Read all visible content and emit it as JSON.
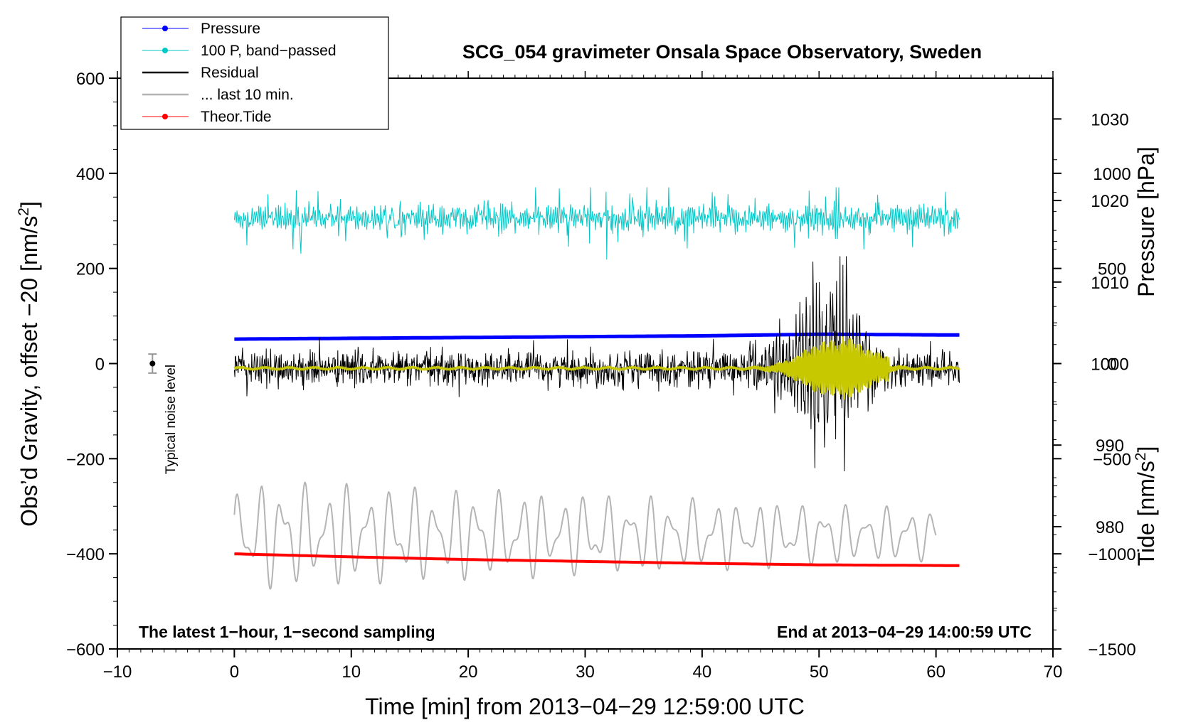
{
  "chart_data": {
    "type": "line",
    "title": "SCG_054 gravimeter Onsala Space Observatory, Sweden",
    "xlabel": "Time [min] from 2013−04−29 12:59:00 UTC",
    "ylabel_left": "Obs’d Gravity, offset −20 [nm/s²]",
    "ylabel_left_base": "Obs’d Gravity, offset −20 [nm/s",
    "ylabel_left_sup": "2",
    "ylabel_left_tail": "]",
    "ylabel_right_pressure": "Pressure [hPa]",
    "ylabel_right_tide_base": "Tide [nm/s",
    "ylabel_right_tide_sup": "2",
    "ylabel_right_tide_tail": "]",
    "xlim": [
      -10,
      70
    ],
    "ylim": [
      -600,
      600
    ],
    "pressure_axis_range": [
      965,
      1035
    ],
    "tide_axis_range": [
      -1500,
      1500
    ],
    "x_ticks": [
      -10,
      0,
      10,
      20,
      30,
      40,
      50,
      60,
      70
    ],
    "x_tick_labels": [
      "−10",
      "0",
      "10",
      "20",
      "30",
      "40",
      "50",
      "60",
      "70"
    ],
    "y_ticks": [
      -600,
      -400,
      -200,
      0,
      200,
      400,
      600
    ],
    "y_tick_labels": [
      "−600",
      "−400",
      "−200",
      "0",
      "200",
      "400",
      "600"
    ],
    "pressure_ticks": [
      980,
      990,
      1000,
      1010,
      1020,
      1030
    ],
    "pressure_tick_labels": [
      "980",
      "990",
      "1000",
      "1010",
      "1020",
      "1030"
    ],
    "tide_ticks": [
      -1500,
      -1000,
      -500,
      0,
      500,
      1000
    ],
    "tide_tick_labels": [
      "−1500",
      "−1000",
      "−500",
      "0",
      "500",
      "1000"
    ],
    "legend_position": "top-left",
    "legend": [
      {
        "label": "Pressure",
        "color": "#0000ff",
        "marker": true
      },
      {
        "label": "100 P, band−passed",
        "color": "#00c8c8",
        "marker": true
      },
      {
        "label": "Residual",
        "color": "#000000",
        "marker": false
      },
      {
        "label": "... last 10 min.",
        "color": "#b4b4b4",
        "marker": false
      },
      {
        "label": "Theor.Tide",
        "color": "#ff0000",
        "marker": true
      }
    ],
    "annotations": {
      "left": "The latest 1−hour, 1−second sampling",
      "right": "End at 2013−04−29 14:00:59 UTC",
      "noise_label": "Typical noise level"
    },
    "noise_level": {
      "x": -7,
      "y": 0,
      "error": 20
    },
    "series": [
      {
        "name": "Pressure",
        "color": "#0000ff",
        "axis": "pressure",
        "x_range": [
          0,
          62
        ],
        "x": [
          0,
          10,
          20,
          30,
          40,
          50,
          62
        ],
        "values": [
          1003.0,
          1003.1,
          1003.2,
          1003.3,
          1003.4,
          1003.6,
          1003.5
        ]
      },
      {
        "name": "100 P, band−passed",
        "color": "#00c8c8",
        "axis": "gravity",
        "x_range": [
          0,
          62
        ],
        "mean": 305,
        "typical_range": [
          270,
          340
        ],
        "extremes": [
          200,
          370
        ]
      },
      {
        "name": "Residual",
        "color": "#000000",
        "axis": "gravity",
        "x_range": [
          0,
          62
        ],
        "mean": -10,
        "typical_range": [
          -50,
          40
        ],
        "extremes": [
          -240,
          225
        ],
        "peak_x": 51
      },
      {
        "name": "Residual (filtered)",
        "color": "#c8c800",
        "axis": "gravity",
        "x_range": [
          0,
          62
        ],
        "mean": -10,
        "extremes": [
          -75,
          60
        ],
        "peak_x": 51
      },
      {
        "name": "... last 10 min.",
        "color": "#b4b4b4",
        "axis": "gravity",
        "x_range": [
          0,
          60
        ],
        "mean": -360,
        "extremes": [
          -515,
          -230
        ]
      },
      {
        "name": "Theor.Tide",
        "color": "#ff0000",
        "axis": "tide",
        "x": [
          0,
          10,
          20,
          30,
          40,
          50,
          62
        ],
        "values": [
          -1000,
          -1016,
          -1030,
          -1040,
          -1050,
          -1058,
          -1062
        ]
      }
    ]
  }
}
